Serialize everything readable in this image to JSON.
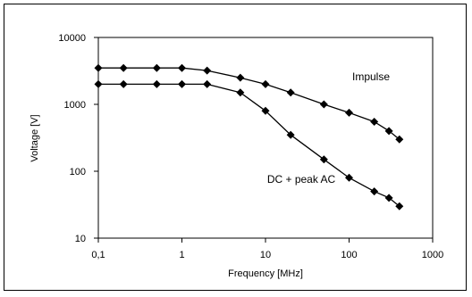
{
  "chart_data": {
    "type": "line",
    "xlabel": "Frequency [MHz]",
    "ylabel": "Voltage  [V]",
    "xscale": "log",
    "yscale": "log",
    "xlim": [
      0.1,
      1000
    ],
    "ylim": [
      10,
      10000
    ],
    "x_ticks": [
      0.1,
      1,
      10,
      100,
      1000
    ],
    "x_tick_labels": [
      "0,1",
      "1",
      "10",
      "100",
      "1000"
    ],
    "y_ticks": [
      10,
      100,
      1000,
      10000
    ],
    "y_tick_labels": [
      "10",
      "100",
      "1000",
      "10000"
    ],
    "grid": false,
    "series": [
      {
        "name": "Impulse",
        "x": [
          0.1,
          0.2,
          0.5,
          1,
          2,
          5,
          10,
          20,
          50,
          100,
          200,
          300,
          400
        ],
        "y": [
          3500,
          3500,
          3500,
          3500,
          3200,
          2500,
          2000,
          1500,
          1000,
          750,
          550,
          400,
          300
        ]
      },
      {
        "name": "DC + peak AC",
        "x": [
          0.1,
          0.2,
          0.5,
          1,
          2,
          5,
          10,
          20,
          50,
          100,
          200,
          300,
          400
        ],
        "y": [
          2000,
          2000,
          2000,
          2000,
          2000,
          1500,
          800,
          350,
          150,
          80,
          50,
          40,
          30
        ]
      }
    ],
    "annotations": [
      {
        "text": "Impulse",
        "series": 0
      },
      {
        "text": "DC + peak AC",
        "series": 1
      }
    ],
    "colors": {
      "line": "#000000",
      "marker": "#000000"
    },
    "marker": "diamond"
  }
}
